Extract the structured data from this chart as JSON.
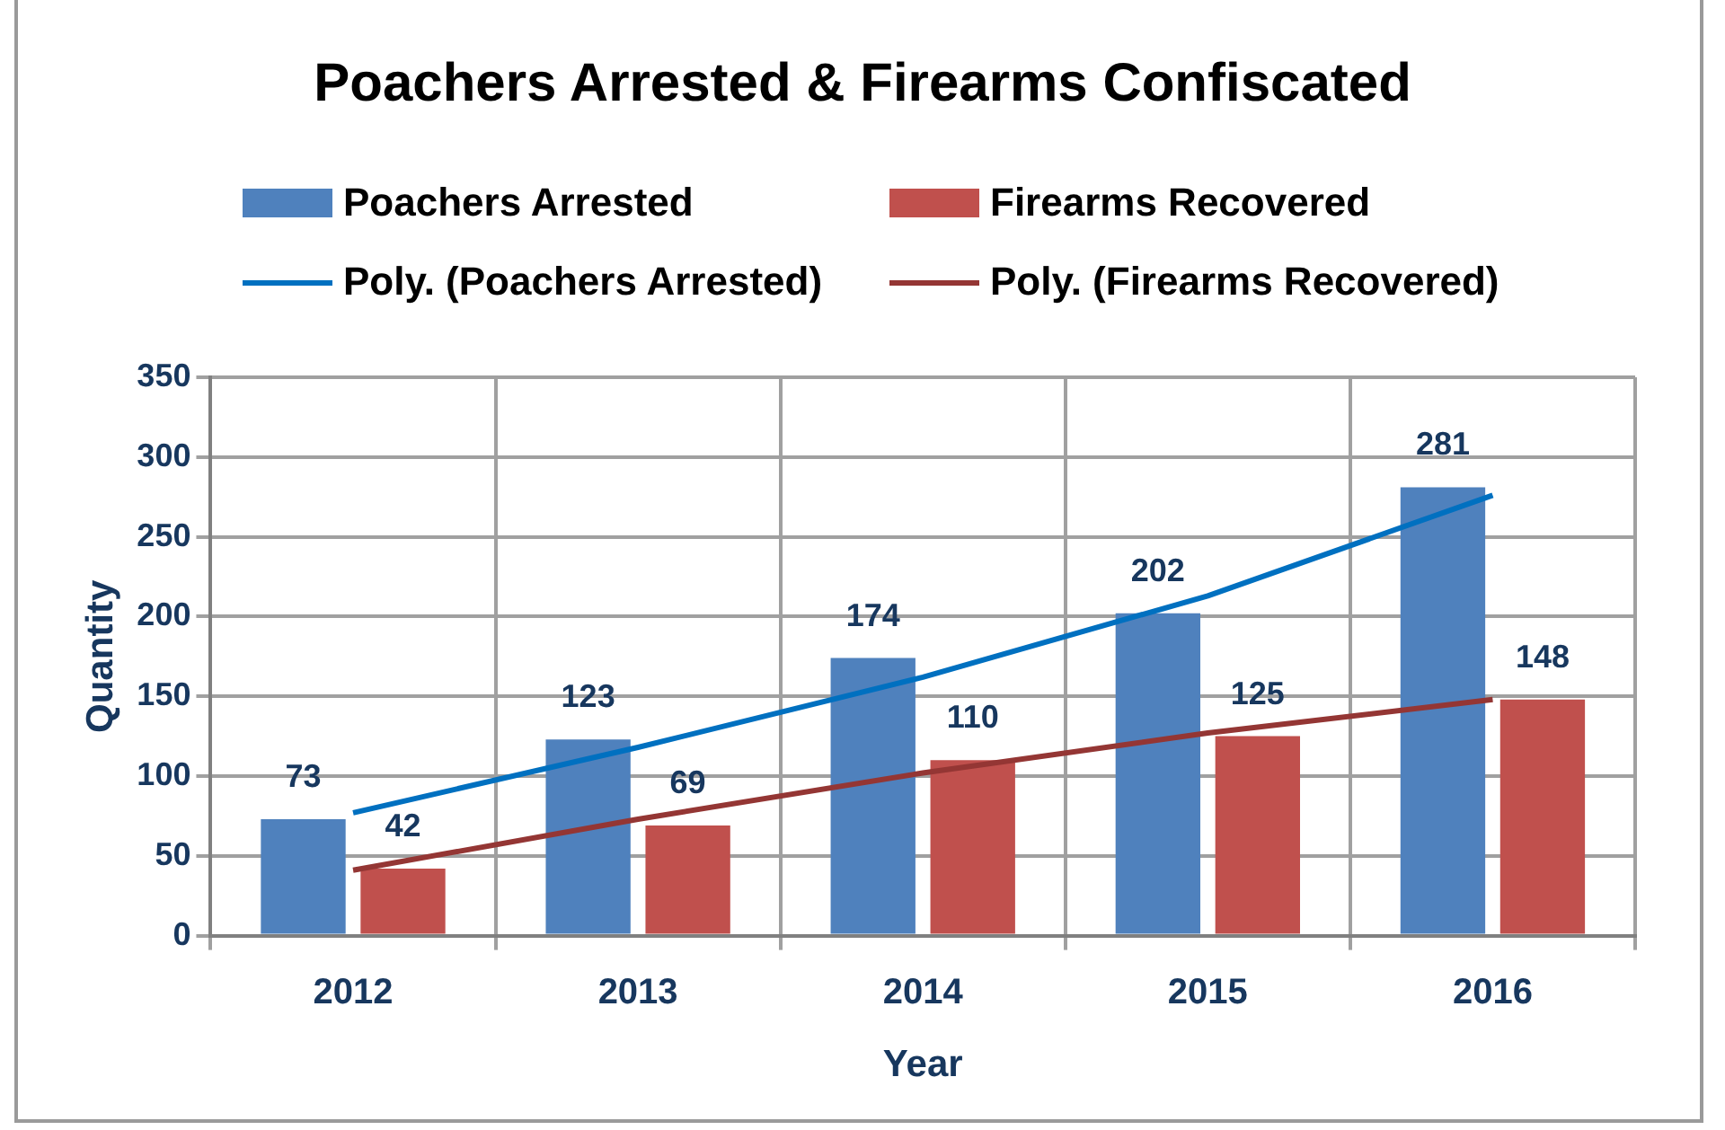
{
  "chart_data": {
    "type": "bar",
    "title": "Poachers Arrested & Firearms Confiscated",
    "xlabel": "Year",
    "ylabel": "Quantity",
    "categories": [
      "2012",
      "2013",
      "2014",
      "2015",
      "2016"
    ],
    "series": [
      {
        "name": "Poachers Arrested",
        "color": "#4f81bd",
        "values": [
          73,
          123,
          174,
          202,
          281
        ],
        "value_labels": [
          "73",
          "123",
          "174",
          "202",
          "281"
        ]
      },
      {
        "name": "Firearms Recovered",
        "color": "#c0504d",
        "values": [
          42,
          69,
          110,
          125,
          148
        ],
        "value_labels": [
          "42",
          "69",
          "110",
          "125",
          "148"
        ]
      },
      {
        "name": "Poly. (Poachers Arrested)",
        "type": "line",
        "color": "#0070c0",
        "values": [
          77,
          118,
          162,
          213,
          276
        ]
      },
      {
        "name": "Poly. (Firearms Recovered)",
        "type": "line",
        "color": "#943634",
        "values": [
          41,
          73,
          102,
          127,
          148
        ]
      }
    ],
    "ylim": [
      0,
      350
    ],
    "yticks": [
      0,
      50,
      100,
      150,
      200,
      250,
      300,
      350
    ],
    "grid": true,
    "legend": "top",
    "marker": "none"
  }
}
